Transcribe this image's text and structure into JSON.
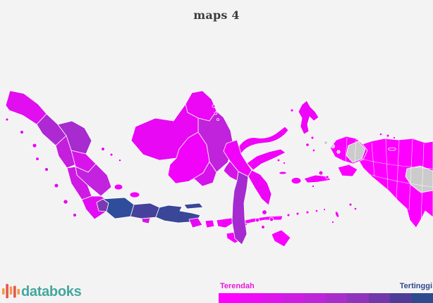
{
  "title": "maps 4",
  "brand": {
    "name": "databoks",
    "text_color": "#43A79E",
    "icon_orange": "#F29A4B",
    "icon_red": "#E2574C"
  },
  "legend": {
    "low_label": "Terendah",
    "high_label": "Tertinggi",
    "low_label_color": "#EA19D7",
    "high_label_color": "#2E4A8C",
    "steps": [
      "#FE00FE",
      "#EF0AF6",
      "#DF14EC",
      "#CE1DE3",
      "#BC26D8",
      "#A72ECB",
      "#8F34BC",
      "#7038AA",
      "#4D3D99",
      "#2E4B8D"
    ]
  },
  "map": {
    "border_color": "#FFFFFF",
    "fills": {
      "aceh": "#E10EF0",
      "north_sumatra": "#AE29D4",
      "riau": "#A72BCE",
      "riau_islands": "#EE07F6",
      "west_sumatra": "#C41FDC",
      "jambi": "#D914EB",
      "south_sumatra": "#C322DE",
      "bengkulu": "#CE1AE3",
      "lampung": "#E10EF2",
      "bangka_belitung": "#F104F9",
      "west_coast_islands": "#E40CF1",
      "banten": "#7D39B1",
      "west_java": "#2F4D9B",
      "central_java": "#46419A",
      "yogyakarta": "#D414E9",
      "east_java": "#3A4798",
      "bali": "#E50AF4",
      "west_nusa_tenggara": "#F302FA",
      "east_nusa_tenggara": "#FA00FE",
      "west_kalimantan": "#E808F4",
      "central_kalimantan": "#F103F9",
      "south_kalimantan": "#D713EB",
      "east_kalimantan": "#C122DC",
      "north_kalimantan": "#EC07F5",
      "north_sulawesi": "#F004F8",
      "central_sulawesi": "#F103F9",
      "west_sulawesi": "#D514E8",
      "south_sulawesi": "#A52BD0",
      "southeast_sulawesi": "#ED06F6",
      "north_maluku": "#EF05F8",
      "maluku": "#F401FB",
      "west_papua": "#FB00FE",
      "papua": "#FE00FF",
      "no_data": "#CBCBCB"
    }
  }
}
